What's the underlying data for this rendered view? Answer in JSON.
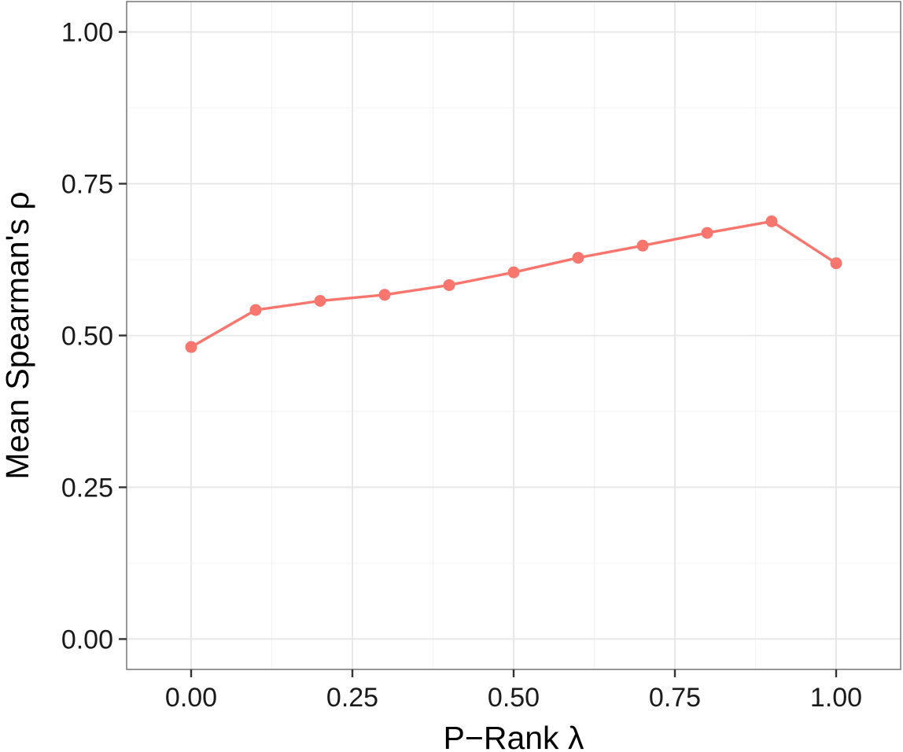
{
  "chart_data": {
    "type": "line",
    "title": "",
    "xlabel": "P−Rank  λ",
    "ylabel": "Mean Spearman's  ρ",
    "xlim": [
      -0.1,
      1.1
    ],
    "ylim": [
      -0.05,
      1.05
    ],
    "x_ticks": [
      0,
      0.25,
      0.5,
      0.75,
      1.0
    ],
    "x_tick_labels": [
      "0.00",
      "0.25",
      "0.50",
      "0.75",
      "1.00"
    ],
    "y_ticks": [
      0,
      0.25,
      0.5,
      0.75,
      1.0
    ],
    "y_tick_labels": [
      "0.00",
      "0.25",
      "0.50",
      "0.75",
      "1.00"
    ],
    "grid": true,
    "legend": "none",
    "series": [
      {
        "color": "#F8766D",
        "x": [
          0.0,
          0.1,
          0.2,
          0.3,
          0.4,
          0.5,
          0.6,
          0.7,
          0.8,
          0.9,
          1.0
        ],
        "y": [
          0.481,
          0.542,
          0.557,
          0.567,
          0.583,
          0.604,
          0.628,
          0.648,
          0.669,
          0.688,
          0.619
        ]
      }
    ]
  }
}
